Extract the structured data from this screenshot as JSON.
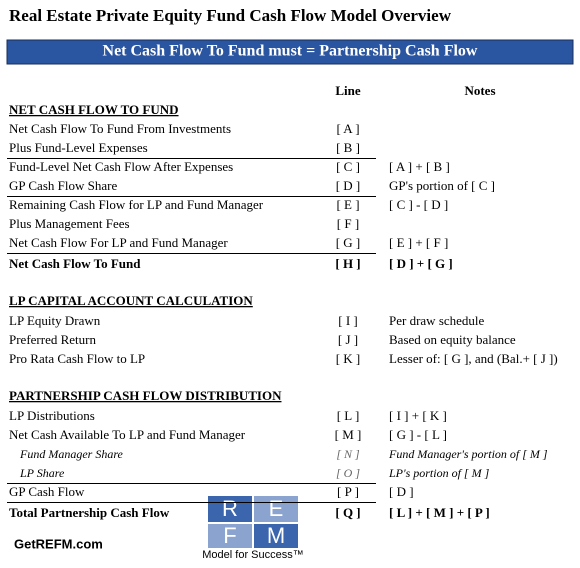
{
  "header": {
    "title": "Real Estate Private Equity Fund Cash Flow Model Overview",
    "banner": "Net Cash Flow To Fund must = Partnership Cash Flow"
  },
  "columns": {
    "line": "Line",
    "notes": "Notes"
  },
  "sections": [
    {
      "title": "NET CASH FLOW TO FUND",
      "rows": [
        {
          "label": "Net Cash Flow To Fund From Investments",
          "line": "[ A ]"
        },
        {
          "label": "Plus Fund-Level Expenses",
          "line": "[ B ]"
        },
        {
          "label": "Fund-Level Net Cash Flow After Expenses",
          "line": "[ C ]",
          "note": "[ A ] + [ B ]"
        },
        {
          "label": "GP Cash Flow Share",
          "line": "[ D ]",
          "note": "GP's portion of [ C ]"
        },
        {
          "label": "Remaining Cash Flow for LP and Fund Manager",
          "line": "[ E ]",
          "note": "[ C ] - [ D ]"
        },
        {
          "label": "Plus Management Fees",
          "line": "[ F ]"
        },
        {
          "label": "Net Cash Flow For LP and Fund Manager",
          "line": "[ G ]",
          "note": "[ E ] + [ F ]"
        },
        {
          "label": "Net Cash Flow To Fund",
          "line": "[ H ]",
          "note": "[ D ] + [ G ]"
        }
      ]
    },
    {
      "title": "LP CAPITAL ACCOUNT CALCULATION",
      "rows": [
        {
          "label": "LP Equity Drawn",
          "line": "[ I ]",
          "note": "Per draw schedule"
        },
        {
          "label": "Preferred Return",
          "line": "[ J ]",
          "note": "Based on equity balance"
        },
        {
          "label": "Pro Rata Cash Flow to LP",
          "line": "[ K ]",
          "note": "Lesser of: [ G ], and (Bal.+ [ J ])"
        }
      ]
    },
    {
      "title": "PARTNERSHIP CASH FLOW DISTRIBUTION",
      "rows": [
        {
          "label": "LP Distributions",
          "line": "[ L ]",
          "note": "[ I ] + [ K ]"
        },
        {
          "label": "Net Cash Available To LP and Fund Manager",
          "line": "[ M ]",
          "note": "[ G ] - [ L ]"
        },
        {
          "label": "Fund Manager Share",
          "line": "[ N ]",
          "note": "Fund Manager's portion of [ M ]"
        },
        {
          "label": "LP Share",
          "line": "[ O ]",
          "note": "LP's portion of [ M ]"
        },
        {
          "label": "GP Cash Flow",
          "line": "[ P ]",
          "note": "[ D ]"
        },
        {
          "label": "Total Partnership Cash Flow",
          "line": "[ Q ]",
          "note": "[ L ] + [ M ] + [ P ]"
        }
      ]
    }
  ],
  "logo": {
    "letters": [
      "R",
      "E",
      "F",
      "M"
    ],
    "tagline": "Model for Success™",
    "site": "GetREFM.com"
  }
}
